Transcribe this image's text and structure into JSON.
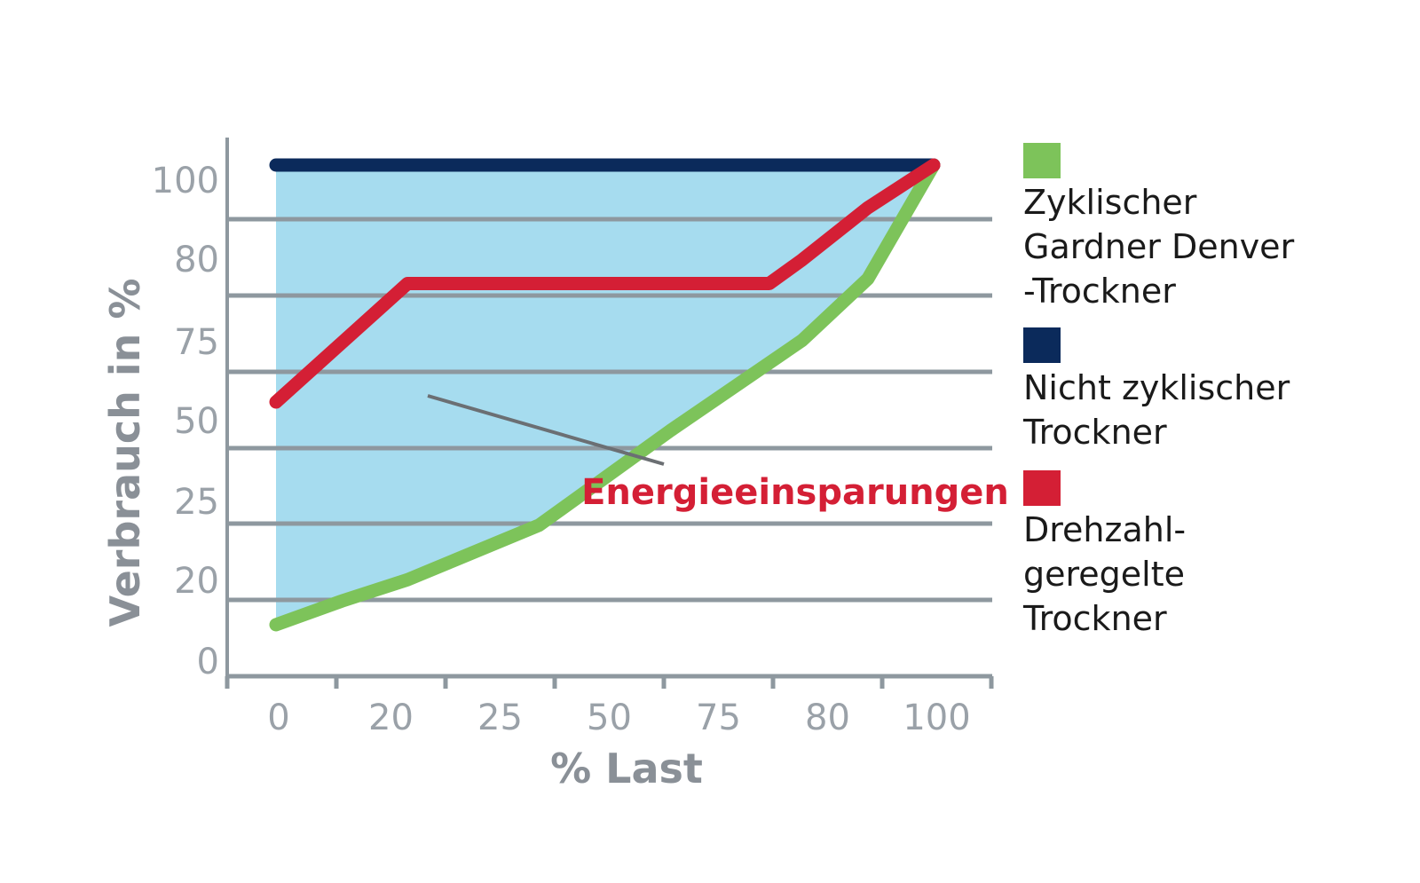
{
  "chart_data": {
    "type": "line",
    "title": "",
    "xlabel": "% Last",
    "ylabel": "Verbrauch in %",
    "x_tick_labels": [
      "0",
      "20",
      "25",
      "50",
      "75",
      "80",
      "100"
    ],
    "y_tick_labels": [
      "0",
      "20",
      "25",
      "50",
      "75",
      "80",
      "100"
    ],
    "grid": true,
    "legend_position": "right",
    "series": [
      {
        "name": "Zyklischer Gardner Denver -Trockner",
        "legend_lines": [
          "Zyklischer",
          "Gardner Denver",
          "-Trockner"
        ],
        "color": "#7dc35a",
        "x": [
          0,
          10,
          20,
          40,
          60,
          80,
          90,
          100
        ],
        "y": [
          3,
          8,
          12.5,
          24,
          44,
          63,
          76,
          100
        ]
      },
      {
        "name": "Nicht zyklischer Trockner",
        "legend_lines": [
          "Nicht zyklischer",
          "Trockner"
        ],
        "color": "#0b2a5b",
        "x": [
          0,
          100
        ],
        "y": [
          100,
          100
        ]
      },
      {
        "name": "Drehzahl-geregelte Trockner",
        "legend_lines": [
          "Drehzahl-",
          "geregelte",
          "Trockner"
        ],
        "color": "#d41f35",
        "x": [
          0,
          20,
          25,
          50,
          75,
          80,
          90,
          100
        ],
        "y": [
          50,
          75,
          75,
          75,
          75,
          80,
          91,
          100
        ]
      }
    ],
    "shaded_area": {
      "color": "#a6dcef",
      "between": [
        "Nicht zyklischer Trockner",
        "Zyklischer Gardner Denver -Trockner"
      ]
    },
    "annotation": {
      "text": "Energieeinsparungen",
      "color": "#d41f35"
    }
  }
}
